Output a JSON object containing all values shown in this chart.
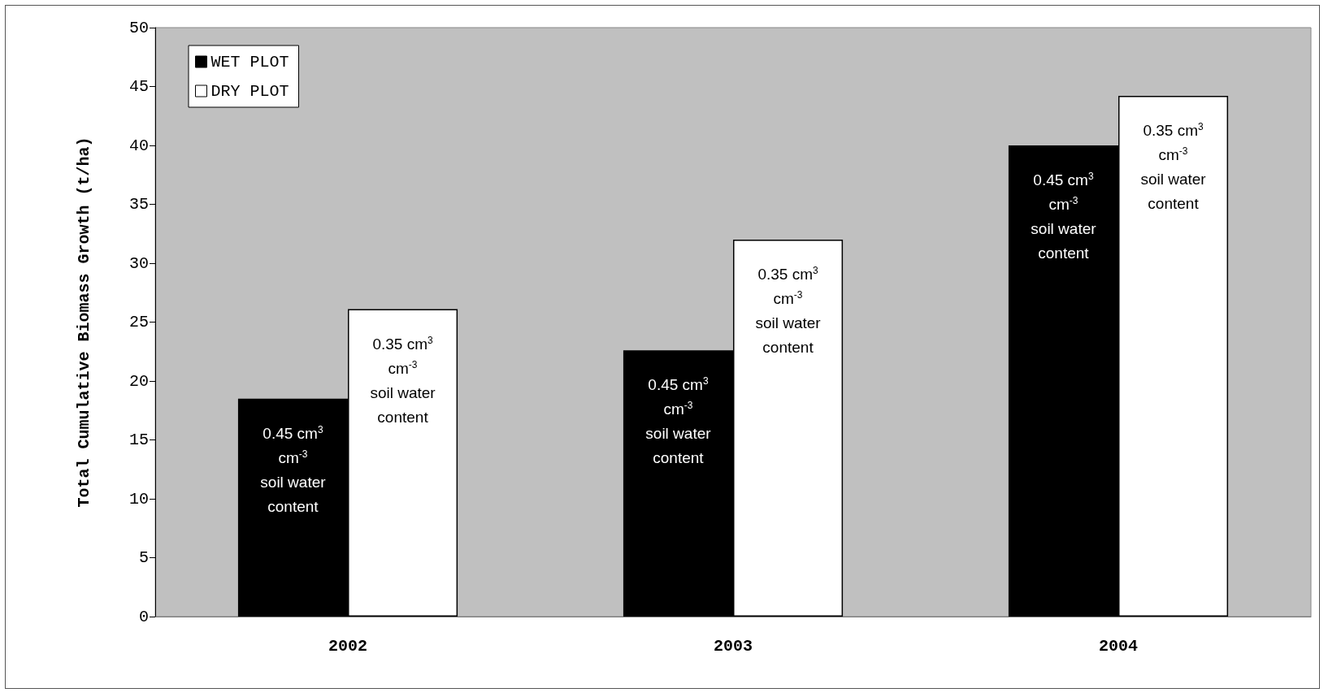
{
  "chart_data": {
    "type": "bar",
    "ylabel": "Total Cumulative Biomass Growth (t/ha)",
    "categories": [
      "2002",
      "2003",
      "2004"
    ],
    "series": [
      {
        "name": "WET PLOT",
        "color": "#000000",
        "values": [
          18.5,
          22.6,
          40.0
        ]
      },
      {
        "name": "DRY PLOT",
        "color": "#ffffff",
        "values": [
          26.1,
          32.0,
          44.2
        ]
      }
    ],
    "annotations": [
      "0.45 cm$^{3}$ cm$^{-3}$ soil water content",
      "0.45 cm$^{3}$ cm$^{-3}$ soil water content",
      "0.45 cm$^{3}$ cm$^{-3}$ soil water content",
      "0.35 cm$^{3}$ cm$^{-3}$ soil water content",
      "0.35 cm$^{3}$ cm$^{-3}$ soil water content",
      "0.35 cm$^{3}$ cm$^{-3}$ soil water content"
    ],
    "ylim": [
      0,
      50
    ],
    "yticks": [
      0,
      5,
      10,
      15,
      20,
      25,
      30,
      35,
      40,
      45,
      50
    ],
    "grid": false,
    "legend": "top left"
  }
}
